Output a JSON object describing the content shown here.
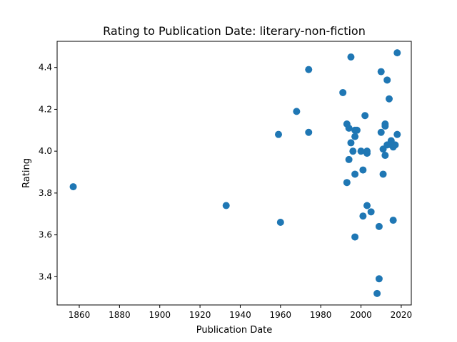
{
  "chart_data": {
    "type": "scatter",
    "title": "Rating to Publication Date: literary-non-fiction",
    "xlabel": "Publication Date",
    "ylabel": "Rating",
    "xlim": [
      1849,
      2025
    ],
    "ylim": [
      3.265,
      4.525
    ],
    "xticks": [
      1860,
      1880,
      1900,
      1920,
      1940,
      1960,
      1980,
      2000,
      2020
    ],
    "yticks": [
      3.4,
      3.6,
      3.8,
      4.0,
      4.2,
      4.4
    ],
    "ytick_labels": [
      "3.4",
      "3.6",
      "3.8",
      "4.0",
      "4.2",
      "4.4"
    ],
    "grid": false,
    "marker_color": "#1f77b4",
    "series": [
      {
        "points": [
          [
            1857,
            3.83
          ],
          [
            1933,
            3.74
          ],
          [
            1959,
            4.08
          ],
          [
            1960,
            3.66
          ],
          [
            1968,
            4.19
          ],
          [
            1974,
            4.39
          ],
          [
            1974,
            4.09
          ],
          [
            1991,
            4.28
          ],
          [
            1993,
            4.13
          ],
          [
            1993,
            3.85
          ],
          [
            1994,
            4.11
          ],
          [
            1994,
            3.96
          ],
          [
            1995,
            4.45
          ],
          [
            1995,
            4.04
          ],
          [
            1996,
            4.0
          ],
          [
            1997,
            4.1
          ],
          [
            1997,
            4.07
          ],
          [
            1997,
            3.89
          ],
          [
            1997,
            3.59
          ],
          [
            1998,
            4.1
          ],
          [
            2000,
            4.0
          ],
          [
            2001,
            3.91
          ],
          [
            2001,
            3.69
          ],
          [
            2002,
            4.17
          ],
          [
            2003,
            4.0
          ],
          [
            2003,
            3.99
          ],
          [
            2003,
            3.74
          ],
          [
            2005,
            3.71
          ],
          [
            2008,
            3.32
          ],
          [
            2009,
            3.39
          ],
          [
            2009,
            3.64
          ],
          [
            2010,
            4.38
          ],
          [
            2010,
            4.09
          ],
          [
            2011,
            4.01
          ],
          [
            2011,
            3.89
          ],
          [
            2012,
            4.13
          ],
          [
            2012,
            4.12
          ],
          [
            2012,
            3.98
          ],
          [
            2013,
            4.34
          ],
          [
            2013,
            4.03
          ],
          [
            2014,
            4.25
          ],
          [
            2015,
            4.05
          ],
          [
            2015,
            4.03
          ],
          [
            2016,
            4.02
          ],
          [
            2016,
            3.67
          ],
          [
            2017,
            4.03
          ],
          [
            2018,
            4.47
          ],
          [
            2018,
            4.08
          ]
        ]
      }
    ]
  }
}
